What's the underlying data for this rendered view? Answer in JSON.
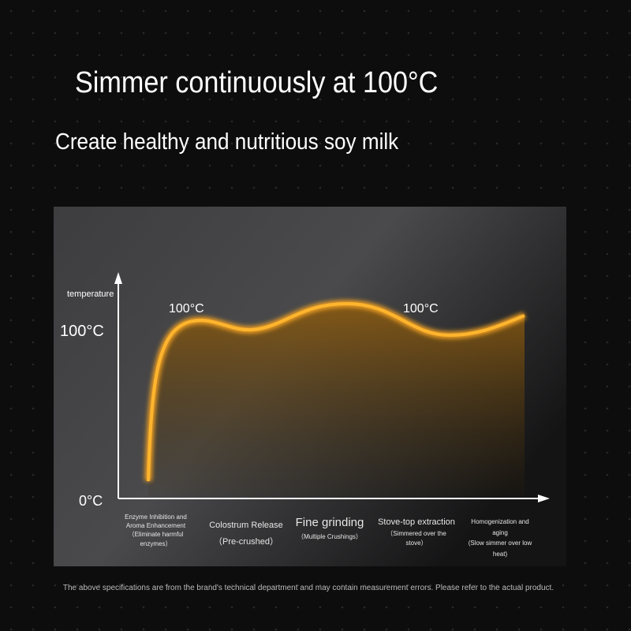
{
  "header": {
    "title": "Simmer continuously at 100°C",
    "subtitle": "Create healthy and nutritious soy milk"
  },
  "diagram": {
    "y_axis_label": "temperature",
    "y_labels": [
      "100°C",
      "0°C"
    ],
    "curve_labels": [
      "100°C",
      "100°C"
    ],
    "stages": [
      {
        "name": "Enzyme Inhibition and Aroma Enhancement",
        "detail": "（Eliminate harmful enzymes）"
      },
      {
        "name": "Colostrum Release",
        "detail": "（Pre-crushed）"
      },
      {
        "name": "Fine grinding",
        "detail": "（Multiple Crushings）"
      },
      {
        "name": "Stove-top extraction",
        "detail": "（Simmered over the stove）"
      },
      {
        "name": "Homogenization and aging",
        "detail": "(Slow simmer over low heat)"
      }
    ]
  },
  "footnote": "The above specifications are from the brand's technical department and may contain measurement errors. Please refer to the actual product."
}
